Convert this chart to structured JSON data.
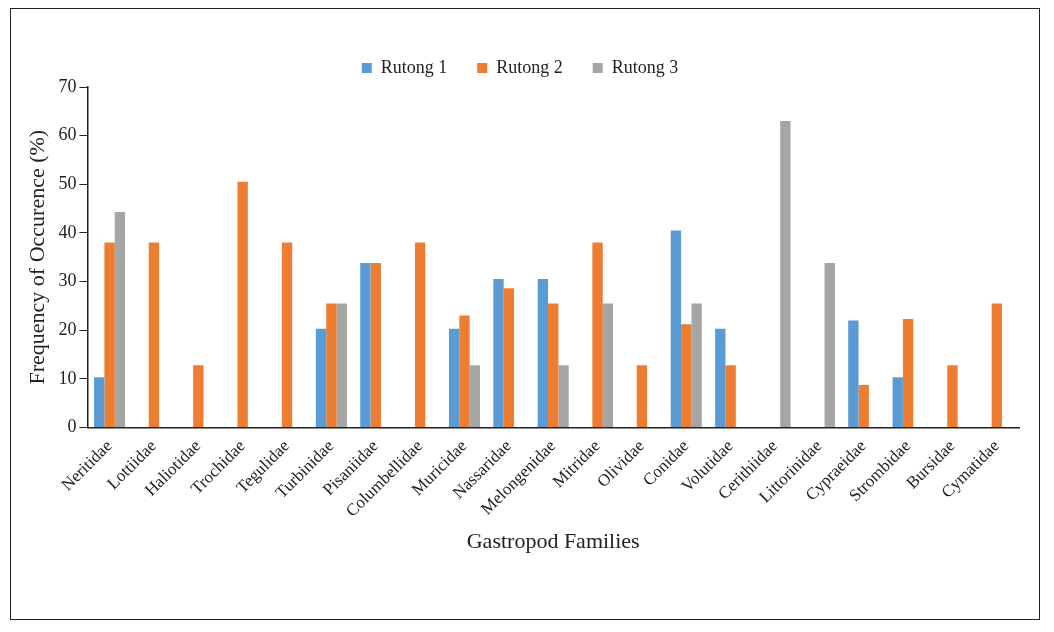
{
  "chart_data": {
    "type": "bar",
    "xlabel": "Gastropod Families",
    "ylabel": "Frequency of Occurence (%)",
    "categories": [
      "Neritidae",
      "Lottiidae",
      "Haliotidae",
      "Trochidae",
      "Tegulidae",
      "Turbinidae",
      "Pisaniidae",
      "Columbellidae",
      "Muricidae",
      "Nassaridae",
      "Melongenidae",
      "Mitridae",
      "Olividae",
      "Conidae",
      "Volutidae",
      "Cerithiidae",
      "Littorinidae",
      "Cypraeidae",
      "Strombidae",
      "Bursidae",
      "Cymatidae"
    ],
    "series": [
      {
        "name": "Rutong 1",
        "color": "#5b9bd5",
        "values": [
          10.3,
          0,
          0,
          0,
          0,
          20.3,
          33.8,
          0,
          20.3,
          30.5,
          30.5,
          0,
          0,
          40.5,
          20.3,
          0,
          0,
          22,
          10.3,
          0,
          0
        ]
      },
      {
        "name": "Rutong 2",
        "color": "#ed7d31",
        "values": [
          38,
          38,
          12.8,
          50.5,
          38,
          25.5,
          33.8,
          38,
          23,
          28.6,
          25.5,
          38,
          12.8,
          21.2,
          12.8,
          0,
          0,
          8.7,
          22.3,
          12.8,
          25.5
        ]
      },
      {
        "name": "Rutong 3",
        "color": "#a5a5a5",
        "values": [
          44.3,
          0,
          0,
          0,
          0,
          25.5,
          0,
          0,
          12.8,
          0,
          12.8,
          25.5,
          0,
          25.5,
          0,
          63,
          33.8,
          0,
          0,
          0,
          0
        ]
      }
    ],
    "ylim": [
      0,
      70
    ],
    "yticks": [
      0,
      10,
      20,
      30,
      40,
      50,
      60,
      70
    ],
    "grid": false,
    "legend": "top"
  }
}
